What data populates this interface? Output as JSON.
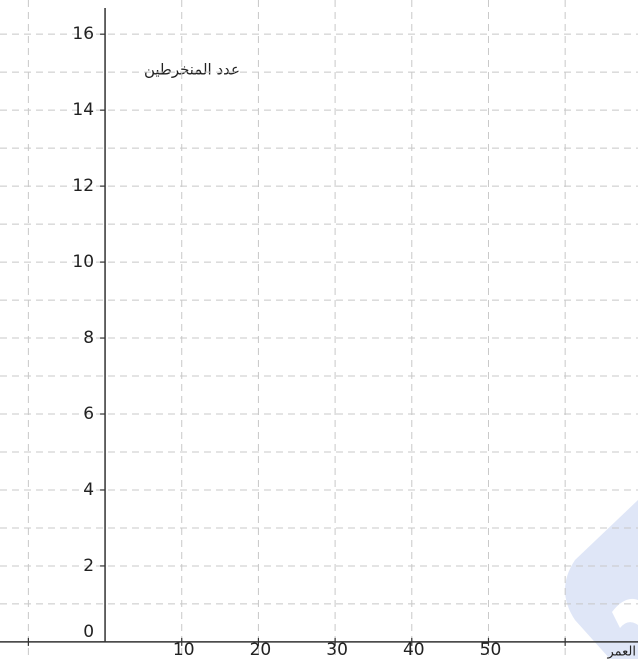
{
  "chart_data": {
    "type": "line",
    "x_label": "العمر",
    "y_label": "عدد المنخرطين",
    "xlim": [
      -13.7,
      69.5
    ],
    "ylim": [
      -0.45,
      16.9
    ],
    "xticks": [
      10,
      20,
      30,
      40,
      50
    ],
    "yticks": [
      0,
      2,
      4,
      6,
      8,
      10,
      12,
      14,
      16
    ],
    "x_gridlines": [
      -10,
      10,
      20,
      30,
      40,
      50,
      60
    ],
    "y_gridlines": [
      1,
      2,
      3,
      4,
      5,
      6,
      7,
      8,
      9,
      10,
      11,
      12,
      13,
      14,
      15,
      16
    ],
    "grid": true
  }
}
